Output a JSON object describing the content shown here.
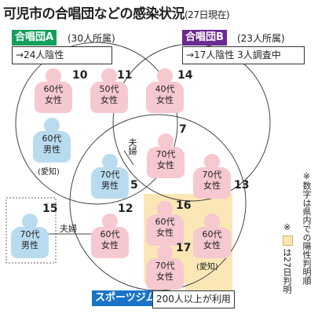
{
  "title": {
    "main": "可児市の合唱団などの感染状況",
    "date": "(27日現在)"
  },
  "choir_a": {
    "label": "合唱団A",
    "members": "(30人所属)",
    "result": "→24人陰性",
    "color": "#13a05a"
  },
  "choir_b": {
    "label": "合唱団B",
    "members": "(23人所属)",
    "result": "→17人陰性 3人調査中",
    "color": "#6a2a8f"
  },
  "gym": {
    "label": "スポーツジム",
    "users": "200人以上が利用",
    "color": "#1a73c9"
  },
  "persons": [
    {
      "num": "10",
      "age": "60代",
      "sex": "女性",
      "tag": ""
    },
    {
      "num": "11",
      "age": "50代",
      "sex": "女性",
      "tag": ""
    },
    {
      "num": "14",
      "age": "40代",
      "sex": "女性",
      "tag": ""
    },
    {
      "num": "",
      "age": "60代",
      "sex": "男性",
      "tag": "(愛知)"
    },
    {
      "num": "7",
      "age": "70代",
      "sex": "女性",
      "tag": ""
    },
    {
      "num": "5",
      "age": "70代",
      "sex": "男性",
      "tag": ""
    },
    {
      "num": "13",
      "age": "70代",
      "sex": "女性",
      "tag": ""
    },
    {
      "num": "15",
      "age": "70代",
      "sex": "男性",
      "tag": ""
    },
    {
      "num": "12",
      "age": "60代",
      "sex": "女性",
      "tag": ""
    },
    {
      "num": "16",
      "age": "60代",
      "sex": "女性",
      "tag": ""
    },
    {
      "num": "",
      "age": "60代",
      "sex": "女性",
      "tag": "(愛知)"
    },
    {
      "num": "17",
      "age": "70代",
      "sex": "女性",
      "tag": ""
    }
  ],
  "couple_label": "夫婦",
  "notes": {
    "note1": "※数字は県内での陽性判明順",
    "note2_mark": "※",
    "note2": "は27日判明"
  },
  "colors": {
    "pink": "#f6c8cf",
    "blue": "#b9dbef",
    "highlight": "#fbe7b6"
  }
}
